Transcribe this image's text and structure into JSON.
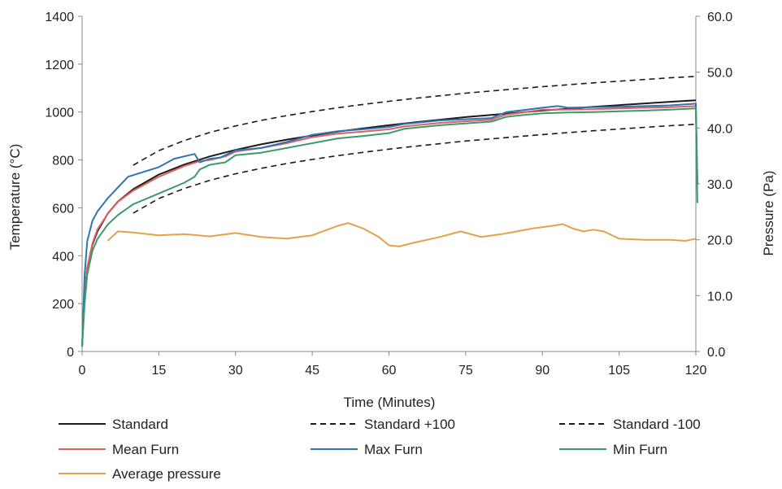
{
  "chart_data": {
    "type": "line",
    "title": "",
    "xlabel": "Time (Minutes)",
    "ylabel_left": "Temperature (°C)",
    "ylabel_right": "Pressure (Pa)",
    "xlim": [
      0,
      120
    ],
    "ylim_left": [
      0,
      1400
    ],
    "ylim_right": [
      0,
      60
    ],
    "x_ticks": [
      0,
      15,
      30,
      45,
      60,
      75,
      90,
      105,
      120
    ],
    "x_tick_labels": [
      "0",
      "15",
      "30",
      "45",
      "60",
      "75",
      "90",
      "105",
      "120"
    ],
    "y_left_ticks": [
      0,
      200,
      400,
      600,
      800,
      1000,
      1200,
      1400
    ],
    "y_left_tick_labels": [
      "0",
      "200",
      "400",
      "600",
      "800",
      "1000",
      "1200",
      "1400"
    ],
    "y_right_ticks": [
      0,
      10,
      20,
      30,
      40,
      50,
      60
    ],
    "y_right_tick_labels": [
      "0.0",
      "10.0",
      "20.0",
      "30.0",
      "40.0",
      "50.0",
      "60.0"
    ],
    "grid": false,
    "legend_position": "bottom",
    "series": [
      {
        "name": "Standard",
        "axis": "left",
        "color": "#1a1a1a",
        "dash": "solid",
        "x": [
          0,
          0.5,
          1,
          2,
          3,
          5,
          7,
          10,
          15,
          20,
          25,
          30,
          35,
          40,
          45,
          50,
          55,
          60,
          65,
          70,
          75,
          80,
          85,
          90,
          95,
          100,
          105,
          110,
          115,
          120
        ],
        "y": [
          20,
          240,
          349,
          445,
          502,
          576,
          626,
          678,
          739,
          781,
          815,
          842,
          865,
          885,
          902,
          918,
          932,
          945,
          957,
          968,
          979,
          988,
          997,
          1006,
          1014,
          1022,
          1029,
          1036,
          1043,
          1049
        ]
      },
      {
        "name": "Standard +100",
        "axis": "left",
        "color": "#1a1a1a",
        "dash": "dashed",
        "x": [
          10,
          15,
          20,
          25,
          30,
          35,
          40,
          45,
          50,
          55,
          60,
          65,
          70,
          75,
          80,
          85,
          90,
          95,
          100,
          105,
          110,
          115,
          120
        ],
        "y": [
          778,
          839,
          881,
          915,
          942,
          965,
          985,
          1002,
          1018,
          1032,
          1045,
          1057,
          1068,
          1079,
          1088,
          1097,
          1106,
          1114,
          1122,
          1129,
          1136,
          1143,
          1149
        ]
      },
      {
        "name": "Standard -100",
        "axis": "left",
        "color": "#1a1a1a",
        "dash": "dashed",
        "x": [
          10,
          15,
          20,
          25,
          30,
          35,
          40,
          45,
          50,
          55,
          60,
          65,
          70,
          75,
          80,
          85,
          90,
          95,
          100,
          105,
          110,
          115,
          120
        ],
        "y": [
          578,
          639,
          681,
          715,
          742,
          765,
          785,
          802,
          818,
          832,
          845,
          857,
          868,
          879,
          888,
          897,
          906,
          914,
          922,
          929,
          936,
          943,
          949
        ]
      },
      {
        "name": "Mean Furn",
        "axis": "left",
        "color": "#e0605e",
        "dash": "solid",
        "x": [
          0,
          0.5,
          1,
          2,
          3,
          5,
          7,
          10,
          15,
          20,
          23,
          25,
          28,
          30,
          35,
          40,
          45,
          50,
          55,
          60,
          63,
          70,
          80,
          83,
          85,
          90,
          95,
          100,
          105,
          110,
          115,
          120,
          120.3
        ],
        "y": [
          20,
          230,
          350,
          450,
          510,
          575,
          625,
          672,
          730,
          775,
          795,
          800,
          815,
          835,
          850,
          870,
          895,
          910,
          918,
          928,
          940,
          955,
          968,
          990,
          995,
          1010,
          1010,
          1012,
          1015,
          1018,
          1020,
          1025,
          700
        ]
      },
      {
        "name": "Max Furn",
        "axis": "left",
        "color": "#2e75b6",
        "dash": "solid",
        "x": [
          0,
          0.5,
          1,
          2,
          3,
          5,
          7,
          9,
          12,
          15,
          18,
          22,
          23,
          25,
          27,
          28,
          30,
          35,
          40,
          45,
          50,
          55,
          60,
          63,
          70,
          80,
          83,
          85,
          90,
          93,
          95,
          100,
          105,
          110,
          115,
          120,
          120.3
        ],
        "y": [
          20,
          320,
          460,
          545,
          585,
          640,
          685,
          730,
          750,
          770,
          805,
          825,
          790,
          805,
          810,
          820,
          840,
          850,
          875,
          905,
          920,
          928,
          938,
          950,
          965,
          975,
          1000,
          1005,
          1018,
          1025,
          1018,
          1020,
          1022,
          1025,
          1028,
          1035,
          700
        ]
      },
      {
        "name": "Min Furn",
        "axis": "left",
        "color": "#3a9a6a",
        "dash": "solid",
        "x": [
          0,
          0.5,
          1,
          2,
          3,
          5,
          7,
          10,
          15,
          20,
          22,
          23,
          25,
          28,
          30,
          35,
          40,
          45,
          50,
          55,
          60,
          63,
          70,
          80,
          83,
          85,
          90,
          95,
          100,
          105,
          110,
          115,
          120,
          120.3
        ],
        "y": [
          20,
          200,
          320,
          420,
          470,
          530,
          570,
          615,
          660,
          705,
          730,
          760,
          780,
          790,
          820,
          830,
          850,
          870,
          890,
          900,
          912,
          930,
          945,
          960,
          980,
          985,
          995,
          998,
          1000,
          1003,
          1006,
          1010,
          1015,
          620
        ]
      },
      {
        "name": "Average pressure",
        "axis": "right",
        "color": "#e3a24a",
        "dash": "solid",
        "x": [
          5,
          7,
          10,
          15,
          20,
          25,
          30,
          35,
          40,
          45,
          50,
          52,
          55,
          58,
          60,
          62,
          65,
          70,
          74,
          78,
          82,
          85,
          88,
          92,
          94,
          96,
          98,
          100,
          102,
          105,
          110,
          115,
          118,
          120
        ],
        "y": [
          19.8,
          21.5,
          21.3,
          20.8,
          21.0,
          20.6,
          21.2,
          20.5,
          20.2,
          20.8,
          22.5,
          23.0,
          22.0,
          20.5,
          19.0,
          18.8,
          19.5,
          20.5,
          21.5,
          20.5,
          21.0,
          21.5,
          22.0,
          22.5,
          22.8,
          22.0,
          21.5,
          21.8,
          21.5,
          20.2,
          20.0,
          20.0,
          19.8,
          20.2
        ]
      }
    ]
  },
  "legend": {
    "items": [
      {
        "label": "Standard",
        "color": "#1a1a1a",
        "dash": "solid"
      },
      {
        "label": "Standard +100",
        "color": "#1a1a1a",
        "dash": "dashed"
      },
      {
        "label": "Standard -100",
        "color": "#1a1a1a",
        "dash": "dashed"
      },
      {
        "label": "Mean Furn",
        "color": "#e0605e",
        "dash": "solid"
      },
      {
        "label": "Max Furn",
        "color": "#2e75b6",
        "dash": "solid"
      },
      {
        "label": "Min Furn",
        "color": "#3a9a6a",
        "dash": "solid"
      },
      {
        "label": "Average pressure",
        "color": "#e3a24a",
        "dash": "solid"
      }
    ]
  }
}
